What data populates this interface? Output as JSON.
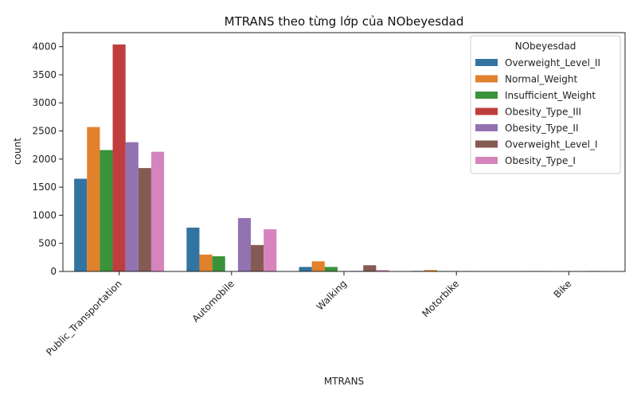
{
  "chart_data": {
    "type": "bar",
    "title": "MTRANS theo từng lớp của NObeyesdad",
    "xlabel": "MTRANS",
    "ylabel": "count",
    "ylim": [
      0,
      4250
    ],
    "yticks": [
      0,
      500,
      1000,
      1500,
      2000,
      2500,
      3000,
      3500,
      4000
    ],
    "categories": [
      "Public_Transportation",
      "Automobile",
      "Walking",
      "Motorbike",
      "Bike"
    ],
    "legend_title": "NObeyesdad",
    "legend_position": "top-right",
    "grid": false,
    "series": [
      {
        "name": "Overweight_Level_II",
        "color": "#3274a1",
        "values": [
          1650,
          780,
          80,
          10,
          8
        ]
      },
      {
        "name": "Normal_Weight",
        "color": "#e1812c",
        "values": [
          2570,
          300,
          180,
          25,
          8
        ]
      },
      {
        "name": "Insufficient_Weight",
        "color": "#3a923a",
        "values": [
          2160,
          270,
          80,
          8,
          5
        ]
      },
      {
        "name": "Obesity_Type_III",
        "color": "#c03d3e",
        "values": [
          4040,
          5,
          3,
          2,
          2
        ]
      },
      {
        "name": "Obesity_Type_II",
        "color": "#9372b2",
        "values": [
          2300,
          950,
          10,
          8,
          5
        ]
      },
      {
        "name": "Overweight_Level_I",
        "color": "#845b53",
        "values": [
          1840,
          470,
          110,
          5,
          8
        ]
      },
      {
        "name": "Obesity_Type_I",
        "color": "#d684bd",
        "values": [
          2130,
          750,
          25,
          5,
          5
        ]
      }
    ]
  }
}
